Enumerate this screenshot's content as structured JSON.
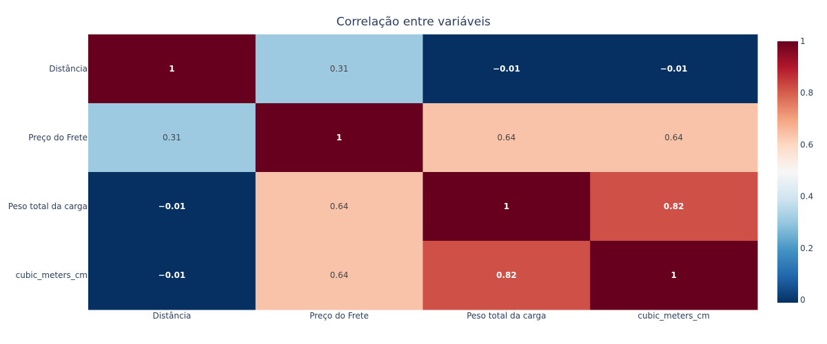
{
  "chart_data": {
    "type": "heatmap",
    "title": "Correlação entre variáveis",
    "x_categories": [
      "Distância",
      "Preço do Frete",
      "Peso total da carga",
      "cubic_meters_cm"
    ],
    "y_categories": [
      "Distância",
      "Preço do Frete",
      "Peso total da carga",
      "cubic_meters_cm"
    ],
    "z": [
      [
        1,
        0.31,
        -0.01,
        -0.01
      ],
      [
        0.31,
        1,
        0.64,
        0.64
      ],
      [
        -0.01,
        0.64,
        1,
        0.82
      ],
      [
        -0.01,
        0.64,
        0.82,
        1
      ]
    ],
    "cell_text": [
      [
        "1",
        "0.31",
        "−0.01",
        "−0.01"
      ],
      [
        "0.31",
        "1",
        "0.64",
        "0.64"
      ],
      [
        "−0.01",
        "0.64",
        "1",
        "0.82"
      ],
      [
        "−0.01",
        "0.64",
        "0.82",
        "1"
      ]
    ],
    "zrange": [
      -0.01,
      1
    ],
    "colorscale": "RdBu reversed",
    "colorbar_ticks": [
      {
        "value": 0,
        "label": "0"
      },
      {
        "value": 0.2,
        "label": "0.2"
      },
      {
        "value": 0.4,
        "label": "0.4"
      },
      {
        "value": 0.6,
        "label": "0.6"
      },
      {
        "value": 0.8,
        "label": "0.8"
      },
      {
        "value": 1,
        "label": "1"
      }
    ],
    "xlabel": "",
    "ylabel": ""
  },
  "colors": {
    "text_dark": "#444444",
    "text_light": "#ffffff",
    "axis_text": "#2a3f5f"
  }
}
